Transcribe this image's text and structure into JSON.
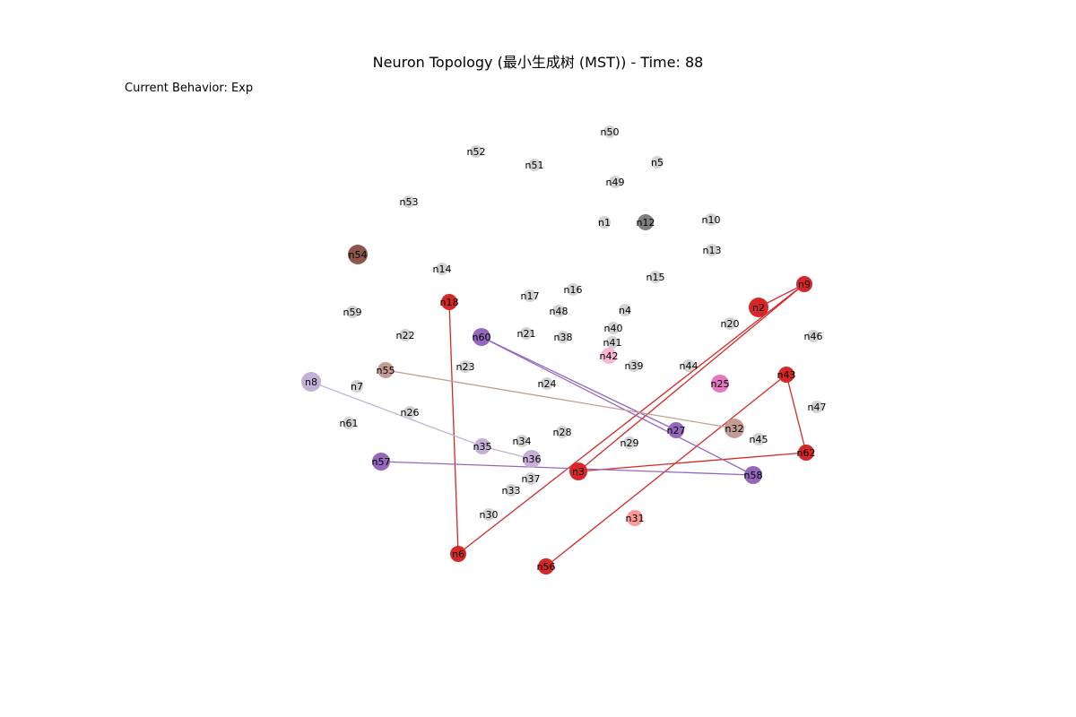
{
  "figure": {
    "title": "Neuron Topology (最小生成树 (MST)) - Time: 88",
    "behavior_label": "Current Behavior: Exp"
  },
  "colors": {
    "inactive": "#d3d3d3",
    "red": "#d62728",
    "purple": "#9467bd",
    "light_purple": "#c5b0d5",
    "brown": "#8c564b",
    "light_brown": "#c49c94",
    "gray": "#7f7f7f",
    "pink": "#e377c2",
    "light_pink": "#f7b6d2",
    "light_red": "#ff9896"
  },
  "nodes": [
    {
      "id": "n50",
      "group": "inactive"
    },
    {
      "id": "n52",
      "group": "inactive"
    },
    {
      "id": "n51",
      "group": "inactive"
    },
    {
      "id": "n5",
      "group": "inactive"
    },
    {
      "id": "n49",
      "group": "inactive"
    },
    {
      "id": "n53",
      "group": "inactive"
    },
    {
      "id": "n1",
      "group": "inactive"
    },
    {
      "id": "n12",
      "group": "gray"
    },
    {
      "id": "n10",
      "group": "inactive"
    },
    {
      "id": "n13",
      "group": "inactive"
    },
    {
      "id": "n54",
      "group": "brown"
    },
    {
      "id": "n14",
      "group": "inactive"
    },
    {
      "id": "n15",
      "group": "inactive"
    },
    {
      "id": "n9",
      "group": "red"
    },
    {
      "id": "n17",
      "group": "inactive"
    },
    {
      "id": "n16",
      "group": "inactive"
    },
    {
      "id": "n18",
      "group": "red"
    },
    {
      "id": "n2",
      "group": "red"
    },
    {
      "id": "n59",
      "group": "inactive"
    },
    {
      "id": "n48",
      "group": "inactive"
    },
    {
      "id": "n4",
      "group": "inactive"
    },
    {
      "id": "n20",
      "group": "inactive"
    },
    {
      "id": "n22",
      "group": "inactive"
    },
    {
      "id": "n60",
      "group": "purple"
    },
    {
      "id": "n21",
      "group": "inactive"
    },
    {
      "id": "n38",
      "group": "inactive"
    },
    {
      "id": "n40",
      "group": "inactive"
    },
    {
      "id": "n41",
      "group": "inactive"
    },
    {
      "id": "n46",
      "group": "inactive"
    },
    {
      "id": "n42",
      "group": "light_pink"
    },
    {
      "id": "n23",
      "group": "inactive"
    },
    {
      "id": "n55",
      "group": "light_brown"
    },
    {
      "id": "n39",
      "group": "inactive"
    },
    {
      "id": "n44",
      "group": "inactive"
    },
    {
      "id": "n43",
      "group": "red"
    },
    {
      "id": "n8",
      "group": "light_purple"
    },
    {
      "id": "n7",
      "group": "inactive"
    },
    {
      "id": "n24",
      "group": "inactive"
    },
    {
      "id": "n25",
      "group": "pink"
    },
    {
      "id": "n47",
      "group": "inactive"
    },
    {
      "id": "n26",
      "group": "inactive"
    },
    {
      "id": "n61",
      "group": "inactive"
    },
    {
      "id": "n27",
      "group": "purple"
    },
    {
      "id": "n32",
      "group": "light_brown"
    },
    {
      "id": "n28",
      "group": "inactive"
    },
    {
      "id": "n34",
      "group": "inactive"
    },
    {
      "id": "n45",
      "group": "inactive"
    },
    {
      "id": "n29",
      "group": "inactive"
    },
    {
      "id": "n35",
      "group": "light_purple"
    },
    {
      "id": "n62",
      "group": "red"
    },
    {
      "id": "n57",
      "group": "purple"
    },
    {
      "id": "n36",
      "group": "light_purple"
    },
    {
      "id": "n3",
      "group": "red"
    },
    {
      "id": "n58",
      "group": "purple"
    },
    {
      "id": "n37",
      "group": "inactive"
    },
    {
      "id": "n33",
      "group": "inactive"
    },
    {
      "id": "n30",
      "group": "inactive"
    },
    {
      "id": "n31",
      "group": "light_red"
    },
    {
      "id": "n6",
      "group": "red"
    },
    {
      "id": "n56",
      "group": "red"
    }
  ],
  "edges": [
    {
      "source": "n18",
      "target": "n6",
      "group": "red"
    },
    {
      "source": "n6",
      "target": "n9",
      "group": "red"
    },
    {
      "source": "n9",
      "target": "n2",
      "group": "red"
    },
    {
      "source": "n9",
      "target": "n3",
      "group": "red"
    },
    {
      "source": "n3",
      "target": "n62",
      "group": "red"
    },
    {
      "source": "n62",
      "target": "n43",
      "group": "red"
    },
    {
      "source": "n43",
      "target": "n56",
      "group": "red"
    },
    {
      "source": "n60",
      "target": "n27",
      "group": "purple"
    },
    {
      "source": "n60",
      "target": "n58",
      "group": "purple"
    },
    {
      "source": "n57",
      "target": "n58",
      "group": "purple"
    },
    {
      "source": "n8",
      "target": "n35",
      "group": "light_purple"
    },
    {
      "source": "n35",
      "target": "n36",
      "group": "light_purple"
    },
    {
      "source": "n55",
      "target": "n32",
      "group": "light_brown"
    }
  ]
}
